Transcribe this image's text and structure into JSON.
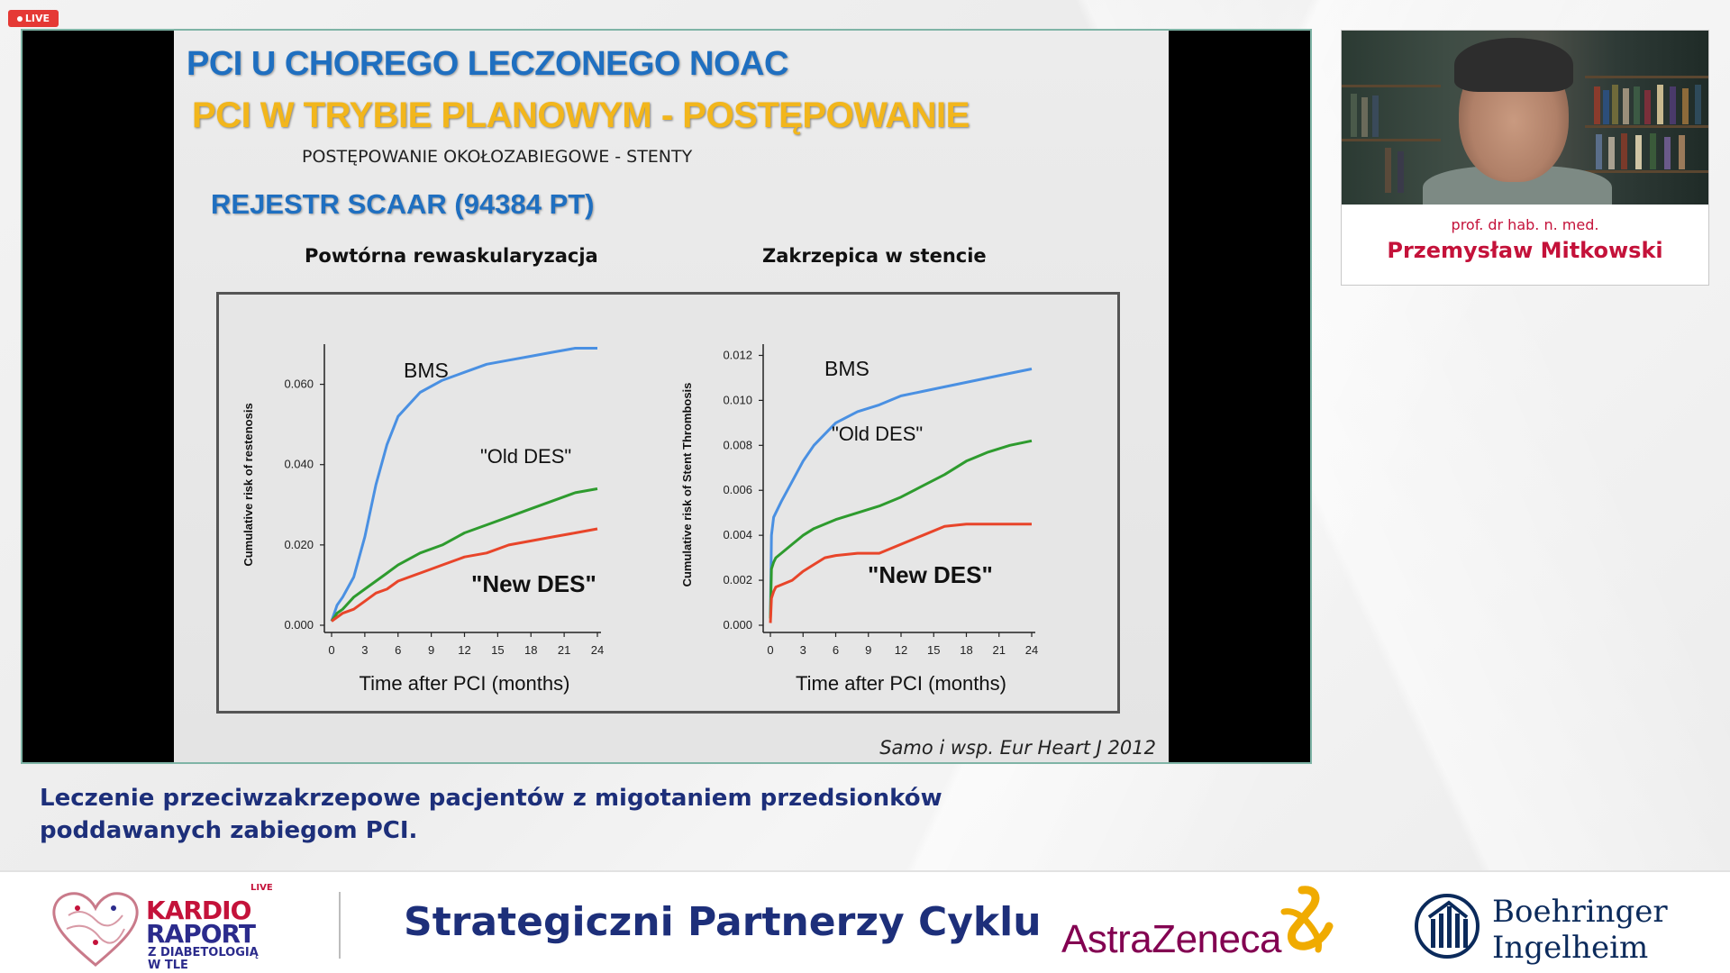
{
  "live_badge": "LIVE",
  "slide": {
    "title1": "PCI U CHOREGO LECZONEGO NOAC",
    "title2": "PCI W TRYBIE PLANOWYM - POSTĘPOWANIE",
    "subtitle": "POSTĘPOWANIE OKOŁOZABIEGOWE - STENTY",
    "registry": "REJESTR SCAAR (94384 PT)",
    "heading_left": "Powtórna rewaskularyzacja",
    "heading_right": "Zakrzepica w stencie",
    "citation": "Samo i wsp. Eur Heart J 2012"
  },
  "speaker": {
    "role": "prof. dr hab. n. med.",
    "name": "Przemysław Mitkowski"
  },
  "caption": {
    "line1": "Leczenie przeciwzakrzepowe pacjentów z migotaniem przedsionków",
    "line2": "poddawanych zabiegom PCI."
  },
  "footer": {
    "logo_kardio": "KARDIO",
    "logo_raport": "RAPORT",
    "logo_live": "LIVE",
    "logo_sub1": "Z DIABETOLOGIĄ",
    "logo_sub2": "W TLE",
    "partners_label": "Strategiczni Partnerzy Cyklu",
    "astrazeneca": "AstraZeneca",
    "boehringer_line1": "Boehringer",
    "boehringer_line2": "Ingelheim"
  },
  "colors": {
    "bms": "#4a90e2",
    "old_des": "#2e9b2e",
    "new_des": "#e8452a"
  },
  "chart_data": [
    {
      "type": "line",
      "xlabel": "Time after PCI (months)",
      "ylabel": "Cumulative risk of restenosis",
      "xticks": [
        "0",
        "3",
        "6",
        "9",
        "12",
        "15",
        "18",
        "21",
        "24"
      ],
      "yticks": [
        "0.000",
        "0.020",
        "0.040",
        "0.060"
      ],
      "xlim": [
        0,
        24
      ],
      "ylim": [
        0,
        0.07
      ],
      "series": [
        {
          "name": "BMS",
          "x": [
            0,
            0.5,
            1,
            2,
            3,
            4,
            5,
            6,
            8,
            10,
            12,
            14,
            16,
            18,
            20,
            22,
            24
          ],
          "values": [
            0.001,
            0.005,
            0.007,
            0.012,
            0.022,
            0.035,
            0.045,
            0.052,
            0.058,
            0.061,
            0.063,
            0.065,
            0.066,
            0.067,
            0.068,
            0.069,
            0.069
          ]
        },
        {
          "name": "\"Old DES\"",
          "x": [
            0,
            0.5,
            1,
            2,
            3,
            4,
            5,
            6,
            8,
            10,
            12,
            14,
            16,
            18,
            20,
            22,
            24
          ],
          "values": [
            0.001,
            0.003,
            0.004,
            0.007,
            0.009,
            0.011,
            0.013,
            0.015,
            0.018,
            0.02,
            0.023,
            0.025,
            0.027,
            0.029,
            0.031,
            0.033,
            0.034
          ]
        },
        {
          "name": "\"New DES\"",
          "x": [
            0,
            0.5,
            1,
            2,
            3,
            4,
            5,
            6,
            8,
            10,
            12,
            14,
            16,
            18,
            20,
            22,
            24
          ],
          "values": [
            0.001,
            0.002,
            0.003,
            0.004,
            0.006,
            0.008,
            0.009,
            0.011,
            0.013,
            0.015,
            0.017,
            0.018,
            0.02,
            0.021,
            0.022,
            0.023,
            0.024
          ]
        }
      ]
    },
    {
      "type": "line",
      "xlabel": "Time after PCI (months)",
      "ylabel": "Cumulative risk of Stent Thrombosis",
      "xticks": [
        "0",
        "3",
        "6",
        "9",
        "12",
        "15",
        "18",
        "21",
        "24"
      ],
      "yticks": [
        "0.000",
        "0.002",
        "0.004",
        "0.006",
        "0.008",
        "0.010",
        "0.012"
      ],
      "xlim": [
        0,
        24
      ],
      "ylim": [
        0,
        0.0125
      ],
      "series": [
        {
          "name": "BMS",
          "x": [
            0,
            0.1,
            0.3,
            0.5,
            1,
            2,
            3,
            4,
            5,
            6,
            8,
            10,
            12,
            14,
            16,
            18,
            20,
            22,
            24
          ],
          "values": [
            0.0003,
            0.004,
            0.0048,
            0.005,
            0.0055,
            0.0064,
            0.0073,
            0.008,
            0.0085,
            0.009,
            0.0095,
            0.0098,
            0.0102,
            0.0104,
            0.0106,
            0.0108,
            0.011,
            0.0112,
            0.0114
          ]
        },
        {
          "name": "\"Old DES\"",
          "x": [
            0,
            0.1,
            0.3,
            0.5,
            1,
            2,
            3,
            4,
            5,
            6,
            8,
            10,
            12,
            14,
            16,
            18,
            20,
            22,
            24
          ],
          "values": [
            0.0003,
            0.0025,
            0.0028,
            0.003,
            0.0032,
            0.0036,
            0.004,
            0.0043,
            0.0045,
            0.0047,
            0.005,
            0.0053,
            0.0057,
            0.0062,
            0.0067,
            0.0073,
            0.0077,
            0.008,
            0.0082
          ]
        },
        {
          "name": "\"New DES\"",
          "x": [
            0,
            0.1,
            0.3,
            0.5,
            1,
            2,
            3,
            4,
            5,
            6,
            8,
            10,
            12,
            14,
            16,
            18,
            20,
            22,
            24
          ],
          "values": [
            0.0001,
            0.0012,
            0.0015,
            0.0017,
            0.0018,
            0.002,
            0.0024,
            0.0027,
            0.003,
            0.0031,
            0.0032,
            0.0032,
            0.0036,
            0.004,
            0.0044,
            0.0045,
            0.0045,
            0.0045,
            0.0045
          ]
        }
      ]
    }
  ]
}
